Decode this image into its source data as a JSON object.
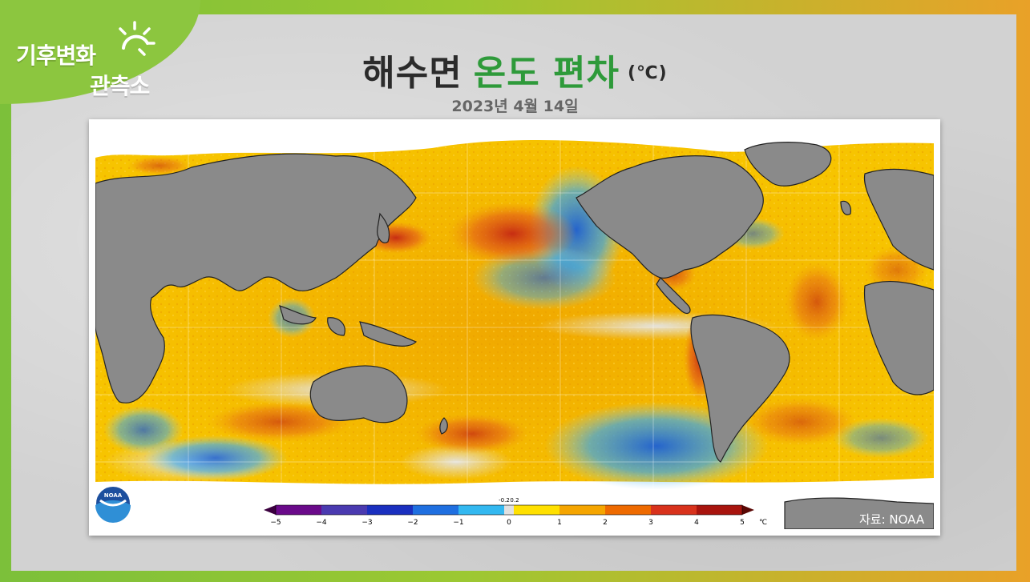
{
  "logo": {
    "line1": "기후변화",
    "line2": "관측소"
  },
  "title": {
    "part1": "해수면",
    "part2": "온도 편차",
    "unit": "(℃)"
  },
  "date": "2023년 4월 14일",
  "colorbar": {
    "ticks": [
      "−5",
      "−4",
      "−3",
      "−2",
      "−1",
      "0",
      "1",
      "2",
      "3",
      "4",
      "5"
    ],
    "small_ticks": [
      "-0.2",
      "0.2"
    ],
    "unit": "℃"
  },
  "noaa_logo_text": "NOAA",
  "source": "자료: NOAA",
  "colors": {
    "land": "#8a8a8a",
    "warm": "#f5b800",
    "hot": "#d8321c",
    "cold": "#2f7de0",
    "neutral": "#e2e2e2"
  }
}
